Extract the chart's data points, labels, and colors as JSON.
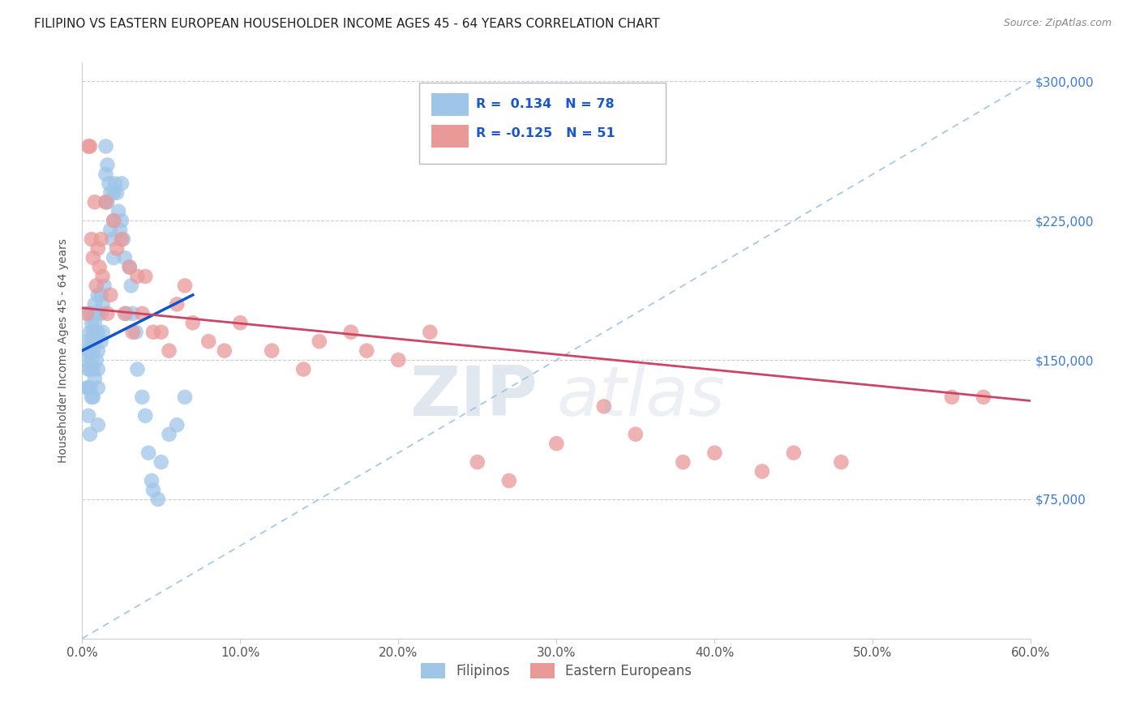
{
  "title": "FILIPINO VS EASTERN EUROPEAN HOUSEHOLDER INCOME AGES 45 - 64 YEARS CORRELATION CHART",
  "source": "Source: ZipAtlas.com",
  "ylabel": "Householder Income Ages 45 - 64 years",
  "xmin": 0.0,
  "xmax": 0.6,
  "ymin": 0,
  "ymax": 310000,
  "ytick_vals": [
    75000,
    150000,
    225000,
    300000
  ],
  "ytick_labels": [
    "$75,000",
    "$150,000",
    "$225,000",
    "$300,000"
  ],
  "xticks": [
    0.0,
    0.1,
    0.2,
    0.3,
    0.4,
    0.5,
    0.6
  ],
  "xtick_labels": [
    "0.0%",
    "10.0%",
    "20.0%",
    "30.0%",
    "40.0%",
    "50.0%",
    "60.0%"
  ],
  "legend_label1": "Filipinos",
  "legend_label2": "Eastern Europeans",
  "R1": 0.134,
  "N1": 78,
  "R2": -0.125,
  "N2": 51,
  "color_blue": "#9fc5e8",
  "color_pink": "#ea9999",
  "color_blue_line": "#1155cc",
  "color_pink_line": "#cc4466",
  "color_dashed": "#9fc5e8",
  "watermark_zip": "ZIP",
  "watermark_atlas": "atlas",
  "background_color": "#ffffff",
  "filipinos_x": [
    0.003,
    0.003,
    0.003,
    0.004,
    0.004,
    0.004,
    0.004,
    0.005,
    0.005,
    0.005,
    0.005,
    0.005,
    0.005,
    0.006,
    0.006,
    0.006,
    0.006,
    0.007,
    0.007,
    0.007,
    0.007,
    0.007,
    0.008,
    0.008,
    0.008,
    0.008,
    0.009,
    0.009,
    0.009,
    0.01,
    0.01,
    0.01,
    0.01,
    0.01,
    0.01,
    0.01,
    0.012,
    0.012,
    0.012,
    0.013,
    0.013,
    0.014,
    0.015,
    0.015,
    0.015,
    0.016,
    0.016,
    0.017,
    0.018,
    0.018,
    0.019,
    0.02,
    0.02,
    0.02,
    0.021,
    0.022,
    0.023,
    0.024,
    0.025,
    0.025,
    0.026,
    0.027,
    0.028,
    0.03,
    0.031,
    0.032,
    0.034,
    0.035,
    0.038,
    0.04,
    0.042,
    0.044,
    0.045,
    0.048,
    0.05,
    0.055,
    0.06,
    0.065
  ],
  "filipinos_y": [
    160000,
    150000,
    135000,
    155000,
    145000,
    135000,
    120000,
    175000,
    165000,
    155000,
    145000,
    135000,
    110000,
    170000,
    160000,
    150000,
    130000,
    175000,
    165000,
    155000,
    145000,
    130000,
    180000,
    170000,
    160000,
    140000,
    175000,
    165000,
    150000,
    185000,
    175000,
    165000,
    155000,
    145000,
    135000,
    115000,
    185000,
    175000,
    160000,
    180000,
    165000,
    190000,
    265000,
    250000,
    235000,
    255000,
    235000,
    245000,
    240000,
    220000,
    215000,
    240000,
    225000,
    205000,
    245000,
    240000,
    230000,
    220000,
    245000,
    225000,
    215000,
    205000,
    175000,
    200000,
    190000,
    175000,
    165000,
    145000,
    130000,
    120000,
    100000,
    85000,
    80000,
    75000,
    95000,
    110000,
    115000,
    130000
  ],
  "eastern_x": [
    0.003,
    0.004,
    0.005,
    0.006,
    0.007,
    0.008,
    0.009,
    0.01,
    0.011,
    0.012,
    0.013,
    0.015,
    0.016,
    0.018,
    0.02,
    0.022,
    0.025,
    0.027,
    0.03,
    0.032,
    0.035,
    0.038,
    0.04,
    0.045,
    0.05,
    0.055,
    0.06,
    0.065,
    0.07,
    0.08,
    0.09,
    0.1,
    0.12,
    0.14,
    0.15,
    0.17,
    0.18,
    0.2,
    0.22,
    0.25,
    0.27,
    0.3,
    0.33,
    0.35,
    0.38,
    0.4,
    0.43,
    0.45,
    0.48,
    0.55,
    0.57
  ],
  "eastern_y": [
    175000,
    265000,
    265000,
    215000,
    205000,
    235000,
    190000,
    210000,
    200000,
    215000,
    195000,
    235000,
    175000,
    185000,
    225000,
    210000,
    215000,
    175000,
    200000,
    165000,
    195000,
    175000,
    195000,
    165000,
    165000,
    155000,
    180000,
    190000,
    170000,
    160000,
    155000,
    170000,
    155000,
    145000,
    160000,
    165000,
    155000,
    150000,
    165000,
    95000,
    85000,
    105000,
    125000,
    110000,
    95000,
    100000,
    90000,
    100000,
    95000,
    130000,
    130000
  ],
  "blue_line_x": [
    0.0,
    0.07
  ],
  "blue_line_y": [
    155000,
    185000
  ],
  "pink_line_x": [
    0.0,
    0.6
  ],
  "pink_line_y": [
    178000,
    128000
  ]
}
